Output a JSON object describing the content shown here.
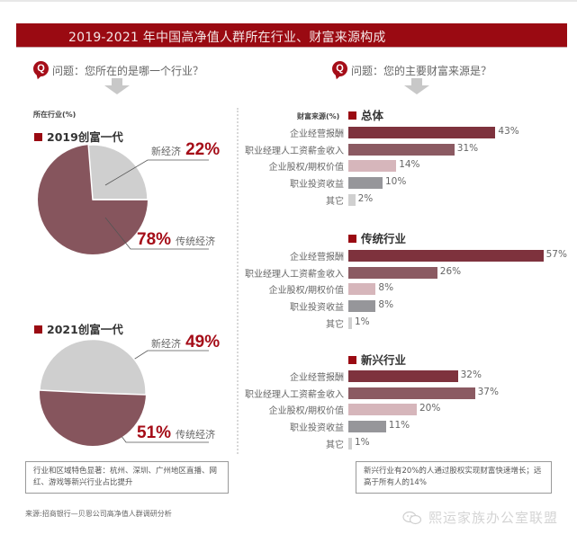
{
  "title": "2019-2021 年中国高净值人群所在行业、财富来源构成",
  "colors": {
    "brand_red": "#9a0a12",
    "bar_dark": "#7e323d",
    "bar_mauve": "#8b5a62",
    "bar_pink": "#d6b6bb",
    "bar_gray": "#96969a",
    "bar_light": "#d0d0d0",
    "pie_traditional": "#86555d",
    "pie_new": "#cfcfcf"
  },
  "left": {
    "question_icon": "q-badge-icon",
    "question": "问题：您所在的是哪一个行业？",
    "axis_label": "所在行业(%)",
    "pies": [
      {
        "title": "2019创富一代",
        "new_label": "新经济",
        "new_pct": "22%",
        "trad_label": "传统经济",
        "trad_pct": "78%"
      },
      {
        "title": "2021创富一代",
        "new_label": "新经济",
        "new_pct": "49%",
        "trad_label": "传统经济",
        "trad_pct": "51%"
      }
    ],
    "note": "行业和区域特色显著：杭州、深圳、广州地区直播、网红、游戏等新兴行业占比提升"
  },
  "right": {
    "question_icon": "q-badge-icon",
    "question": "问题：您的主要财富来源是？",
    "axis_label": "财富来源(%)",
    "groups": [
      {
        "title": "总体",
        "items": [
          {
            "label": "企业经营报酬",
            "value": "43%"
          },
          {
            "label": "职业经理人工资薪金收入",
            "value": "31%"
          },
          {
            "label": "企业股权/期权价值",
            "value": "14%"
          },
          {
            "label": "职业投资收益",
            "value": "10%"
          },
          {
            "label": "其它",
            "value": "2%"
          }
        ]
      },
      {
        "title": "传统行业",
        "items": [
          {
            "label": "企业经营报酬",
            "value": "57%"
          },
          {
            "label": "职业经理人工资薪金收入",
            "value": "26%"
          },
          {
            "label": "企业股权/期权价值",
            "value": "8%"
          },
          {
            "label": "职业投资收益",
            "value": "8%"
          },
          {
            "label": "其它",
            "value": "1%"
          }
        ]
      },
      {
        "title": "新兴行业",
        "items": [
          {
            "label": "企业经营报酬",
            "value": "32%"
          },
          {
            "label": "职业经理人工资薪金收入",
            "value": "37%"
          },
          {
            "label": "企业股权/期权价值",
            "value": "20%"
          },
          {
            "label": "职业投资收益",
            "value": "11%"
          },
          {
            "label": "其它",
            "value": "1%"
          }
        ]
      }
    ],
    "note": "新兴行业有20%的人通过股权实现财富快速增长；远高于所有人的14%"
  },
  "source": "来源:招商银行—贝恩公司高净值人群调研分析",
  "watermark": "熙运家族办公室联盟",
  "chart_data": [
    {
      "type": "pie",
      "title": "2019创富一代",
      "subtitle": "所在行业(%)",
      "categories": [
        "新经济",
        "传统经济"
      ],
      "values": [
        22,
        78
      ]
    },
    {
      "type": "pie",
      "title": "2021创富一代",
      "subtitle": "所在行业(%)",
      "categories": [
        "新经济",
        "传统经济"
      ],
      "values": [
        49,
        51
      ]
    },
    {
      "type": "bar",
      "orientation": "horizontal",
      "title": "总体",
      "ylabel": "财富来源(%)",
      "categories": [
        "企业经营报酬",
        "职业经理人工资薪金收入",
        "企业股权/期权价值",
        "职业投资收益",
        "其它"
      ],
      "values": [
        43,
        31,
        14,
        10,
        2
      ]
    },
    {
      "type": "bar",
      "orientation": "horizontal",
      "title": "传统行业",
      "ylabel": "财富来源(%)",
      "categories": [
        "企业经营报酬",
        "职业经理人工资薪金收入",
        "企业股权/期权价值",
        "职业投资收益",
        "其它"
      ],
      "values": [
        57,
        26,
        8,
        8,
        1
      ]
    },
    {
      "type": "bar",
      "orientation": "horizontal",
      "title": "新兴行业",
      "ylabel": "财富来源(%)",
      "categories": [
        "企业经营报酬",
        "职业经理人工资薪金收入",
        "企业股权/期权价值",
        "职业投资收益",
        "其它"
      ],
      "values": [
        32,
        37,
        20,
        11,
        1
      ]
    }
  ]
}
